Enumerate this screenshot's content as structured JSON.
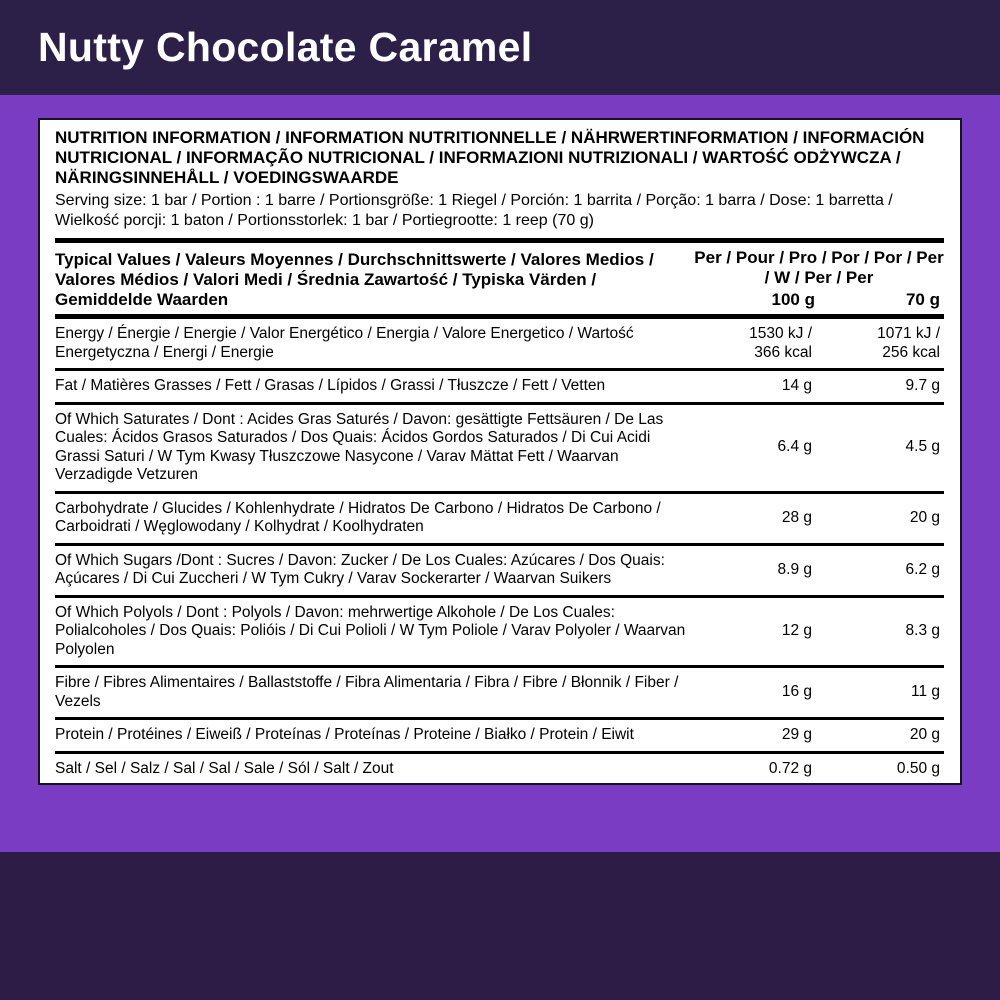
{
  "header": {
    "title": "Nutty Chocolate Caramel"
  },
  "colors": {
    "top_band": "#2d2048",
    "background": "#7b3cc4",
    "bottom_band": "#2d1c46",
    "panel_bg": "#ffffff",
    "text": "#000000",
    "title_text": "#ffffff"
  },
  "panel": {
    "title": "NUTRITION INFORMATION / INFORMATION NUTRITIONNELLE / NÄHRWERTINFORMATION / INFORMACIÓN NUTRICIONAL / INFORMAÇÃO NUTRICIONAL / INFORMAZIONI NUTRIZIONALI / WARTOŚĆ ODŻYWCZA / NÄRINGSINNEHÅLL / VOEDINGSWAARDE",
    "serving": "Serving size: 1 bar / Portion : 1 barre / Portionsgröße: 1 Riegel / Porción: 1 barrita / Porção: 1 barra / Dose: 1 barretta / Wielkość porcji: 1 baton / Portionsstorlek: 1 bar / Portiegrootte: 1 reep (70 g)",
    "table": {
      "header_label": "Typical Values / Valeurs Moyennes / Durchschnittswerte / Valores Medios / Valores Médios / Valori Medi / Średnia Zawartość / Typiska Värden / Gemiddelde Waarden",
      "per_label": "Per / Pour / Pro / Por / Por / Per / W / Per / Per",
      "col1": "100 g",
      "col2": "70 g",
      "rows": [
        {
          "label": "Energy / Énergie / Energie / Valor Energético / Energia / Valore Energetico / Wartość Energetyczna / Energi / Energie",
          "per_100g": "1530 kJ /\n366 kcal",
          "per_70g": "1071 kJ /\n256 kcal"
        },
        {
          "label": "Fat / Matières Grasses / Fett / Grasas / Lípidos / Grassi / Tłuszcze / Fett / Vetten",
          "per_100g": "14 g",
          "per_70g": "9.7 g"
        },
        {
          "label": "Of Which Saturates / Dont : Acides Gras Saturés / Davon: gesättigte Fettsäuren / De Las Cuales: Ácidos Grasos Saturados / Dos Quais: Ácidos Gordos Saturados / Di Cui Acidi Grassi Saturi / W Tym Kwasy Tłuszczowe Nasycone / Varav Mättat Fett / Waarvan Verzadigde Vetzuren",
          "per_100g": "6.4 g",
          "per_70g": "4.5 g"
        },
        {
          "label": "Carbohydrate / Glucides / Kohlenhydrate / Hidratos De Carbono / Hidratos De Carbono / Carboidrati / Węglowodany / Kolhydrat / Koolhydraten",
          "per_100g": "28 g",
          "per_70g": "20 g"
        },
        {
          "label": "Of Which Sugars /Dont : Sucres / Davon: Zucker / De Los Cuales: Azúcares / Dos Quais: Açúcares / Di Cui Zuccheri / W Tym Cukry / Varav Sockerarter / Waarvan Suikers",
          "per_100g": "8.9 g",
          "per_70g": "6.2 g"
        },
        {
          "label": "Of Which Polyols / Dont : Polyols / Davon: mehrwertige Alkohole / De Los Cuales: Polialcoholes / Dos Quais: Polióis / Di Cui Polioli / W Tym Poliole / Varav Polyoler / Waarvan Polyolen",
          "per_100g": "12 g",
          "per_70g": "8.3 g"
        },
        {
          "label": "Fibre / Fibres Alimentaires / Ballaststoffe / Fibra Alimentaria / Fibra / Fibre / Błonnik / Fiber / Vezels",
          "per_100g": "16 g",
          "per_70g": "11 g"
        },
        {
          "label": "Protein / Protéines / Eiweiß / Proteínas / Proteínas / Proteine / Białko / Protein / Eiwit",
          "per_100g": "29 g",
          "per_70g": "20 g"
        },
        {
          "label": "Salt / Sel / Salz / Sal / Sal / Sale / Sól / Salt / Zout",
          "per_100g": "0.72 g",
          "per_70g": "0.50 g"
        }
      ]
    }
  }
}
